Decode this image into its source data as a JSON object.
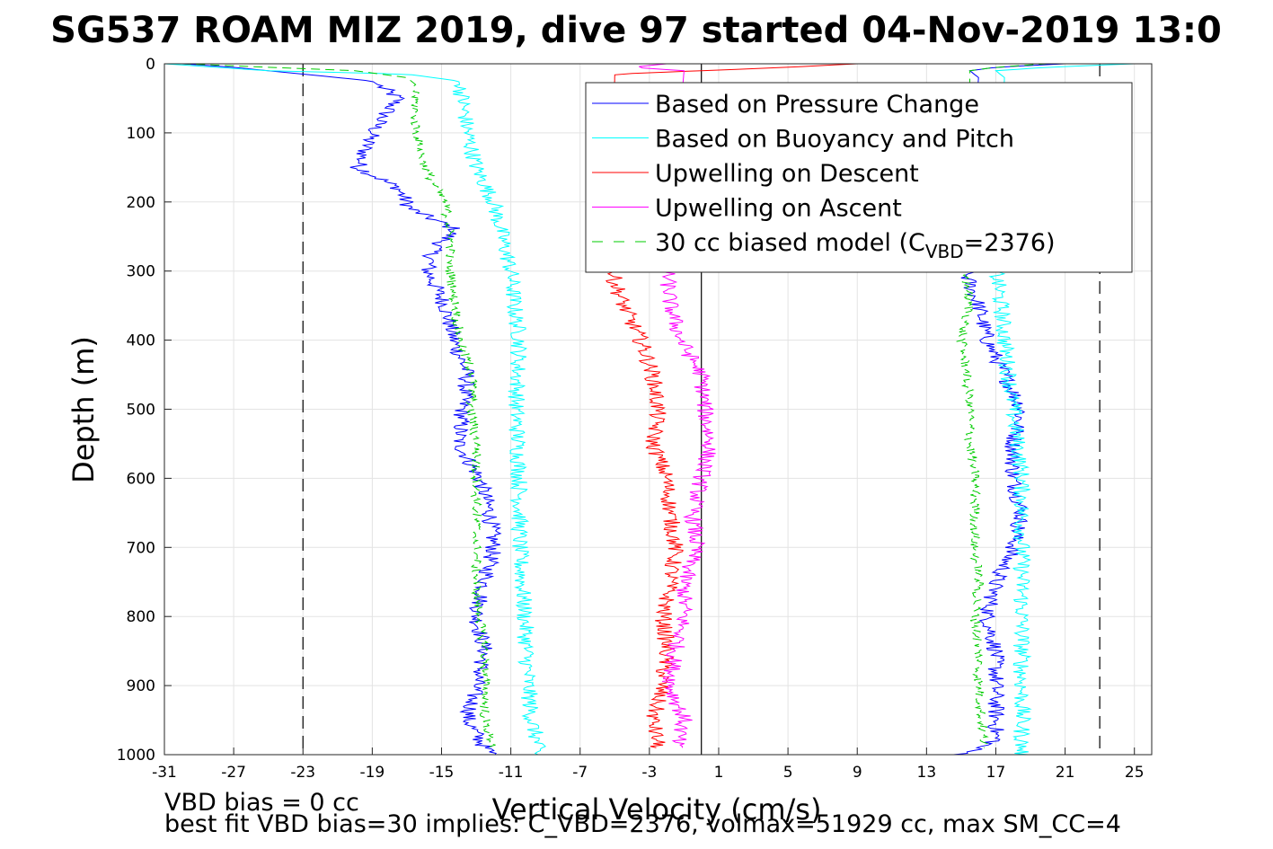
{
  "chart_data": {
    "type": "line",
    "title": "SG537 ROAM MIZ 2019, dive 97 started 04-Nov-2019 13:0",
    "xlabel": "Vertical Velocity (cm/s)",
    "ylabel": "Depth (m)",
    "xlim": [
      -31,
      26
    ],
    "ylim": [
      0,
      1000
    ],
    "y_reversed": true,
    "grid": true,
    "x_ticks": [
      -31,
      -27,
      -23,
      -19,
      -15,
      -11,
      -7,
      -3,
      1,
      5,
      9,
      13,
      17,
      21,
      25
    ],
    "y_ticks": [
      0,
      100,
      200,
      300,
      400,
      500,
      600,
      700,
      800,
      900,
      1000
    ],
    "reference_lines": [
      {
        "x": -23,
        "style": "dashed",
        "color": "#000000"
      },
      {
        "x": 23,
        "style": "dashed",
        "color": "#000000"
      },
      {
        "x": 0,
        "style": "solid",
        "color": "#000000"
      }
    ],
    "legend_position": "top-right",
    "series": [
      {
        "name": "Based on Pressure Change",
        "color": "#0000ff",
        "style": "solid",
        "segments": [
          {
            "depth": [
              0,
              5,
              15,
              25,
              50,
              80,
              110,
              150,
              180,
              210,
              240,
              270,
              300,
              350,
              400,
              450,
              500,
              550,
              600,
              650,
              700,
              750,
              800,
              850,
              900,
              950,
              970,
              990,
              1000
            ],
            "velocity": [
              -30,
              -27,
              -23,
              -19,
              -17.5,
              -18.5,
              -19.2,
              -19.8,
              -17.5,
              -16.8,
              -14.2,
              -15.5,
              -15.8,
              -14.8,
              -14.3,
              -13.5,
              -13.8,
              -14.0,
              -12.8,
              -12.2,
              -12.0,
              -12.5,
              -13.0,
              -12.5,
              -13.0,
              -13.5,
              -13.0,
              -12.5,
              -12.0
            ]
          },
          {
            "depth": [
              0,
              5,
              10,
              20,
              300,
              350,
              400,
              450,
              500,
              550,
              600,
              650,
              700,
              750,
              800,
              850,
              900,
              950,
              980,
              1000
            ],
            "velocity": [
              21,
              17,
              15.5,
              16,
              15.2,
              16,
              16.5,
              17.5,
              18.5,
              18,
              18,
              18.5,
              18,
              17,
              16.5,
              17,
              17,
              17,
              17,
              15
            ]
          }
        ]
      },
      {
        "name": "Based on Buoyancy and Pitch",
        "color": "#00ffff",
        "style": "solid",
        "segments": [
          {
            "depth": [
              0,
              5,
              10,
              15,
              25,
              50,
              100,
              150,
              200,
              250,
              300,
              350,
              400,
              500,
              600,
              700,
              800,
              900,
              950,
              980,
              1000
            ],
            "velocity": [
              -31,
              -28,
              -25,
              -17,
              -14,
              -13.8,
              -13.5,
              -13,
              -12,
              -11.5,
              -11,
              -10.8,
              -10.5,
              -10.7,
              -10.5,
              -10.5,
              -10.2,
              -10,
              -9.8,
              -9.5,
              -9.5
            ]
          },
          {
            "depth": [
              0,
              5,
              10,
              20,
              300,
              350,
              400,
              500,
              600,
              700,
              800,
              900,
              950,
              980,
              1000
            ],
            "velocity": [
              25,
              20,
              17,
              17.5,
              17,
              17.3,
              17.5,
              18,
              18.5,
              18.5,
              18.5,
              18.5,
              18.5,
              18.5,
              18.5
            ]
          }
        ]
      },
      {
        "name": "Upwelling on Descent",
        "color": "#ff0000",
        "style": "solid",
        "segments": [
          {
            "depth": [
              0,
              5,
              10,
              15,
              300,
              350,
              400,
              450,
              500,
              550,
              600,
              650,
              700,
              750,
              800,
              850,
              900,
              950,
              990
            ],
            "velocity": [
              9,
              5,
              0,
              -5,
              -5.2,
              -4.5,
              -3.5,
              -2.8,
              -2.5,
              -2.8,
              -2.0,
              -1.8,
              -1.5,
              -1.8,
              -2.2,
              -2.0,
              -2.3,
              -2.8,
              -2.5
            ]
          }
        ]
      },
      {
        "name": "Upwelling on Ascent",
        "color": "#ff00ff",
        "style": "solid",
        "segments": [
          {
            "depth": [
              0,
              5,
              10,
              300,
              350,
              400,
              450,
              500,
              550,
              600,
              650,
              700,
              750,
              800,
              850,
              900,
              950,
              990
            ],
            "velocity": [
              -2,
              -4,
              -1,
              -2,
              -1.8,
              -1.2,
              0,
              0.2,
              0.5,
              0,
              -0.5,
              -0.3,
              -1.0,
              -1.0,
              -1.5,
              -1.8,
              -1.0,
              -1.5
            ]
          }
        ]
      },
      {
        "name": "30 cc biased model (C",
        "name_sub": "VBD",
        "name_tail": "=2376)",
        "color": "#00cc00",
        "style": "dashed",
        "segments": [
          {
            "depth": [
              0,
              5,
              10,
              20,
              30,
              50,
              100,
              150,
              200,
              250,
              300,
              350,
              400,
              450,
              500,
              550,
              600,
              650,
              700,
              750,
              800,
              850,
              900,
              950,
              990
            ],
            "velocity": [
              -30,
              -25,
              -20,
              -17,
              -16.5,
              -16.5,
              -16.5,
              -16,
              -14.8,
              -14.5,
              -14.5,
              -14.2,
              -14.0,
              -13.2,
              -13.3,
              -13.0,
              -13.0,
              -13.0,
              -13.0,
              -13.0,
              -12.8,
              -12.5,
              -12.5,
              -12.5,
              -12
            ]
          },
          {
            "depth": [
              0,
              5,
              10,
              20,
              300,
              350,
              400,
              450,
              500,
              550,
              600,
              650,
              700,
              750,
              800,
              850,
              900,
              950,
              990
            ],
            "velocity": [
              20,
              17,
              15.5,
              15.5,
              15.2,
              15.5,
              15,
              15.3,
              15.5,
              15.5,
              15.8,
              15.8,
              15.8,
              16,
              15.8,
              16,
              16,
              16.2,
              16.3
            ]
          }
        ]
      }
    ]
  },
  "notes": {
    "line1": "VBD bias = 0 cc",
    "line2": "best fit VBD bias=30 implies: C_VBD=2376, volmax=51929 cc, max SM_CC=4"
  }
}
